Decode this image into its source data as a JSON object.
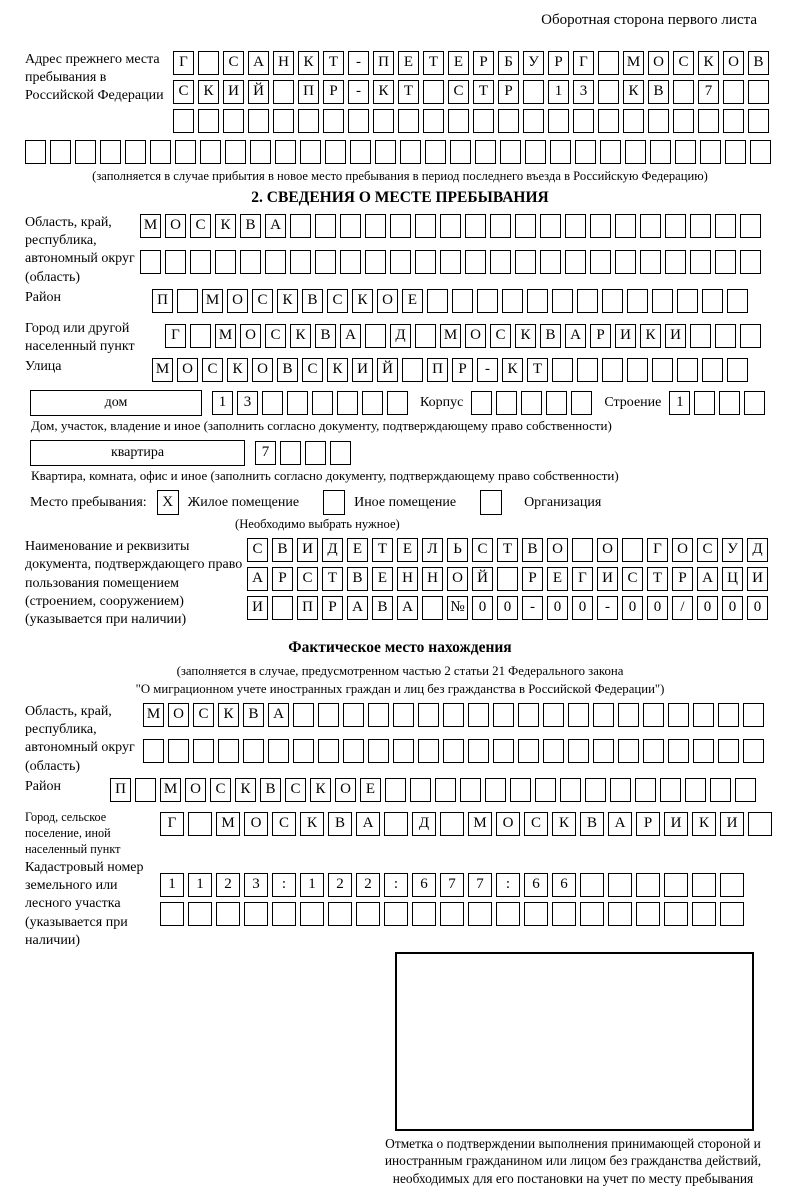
{
  "page": {
    "note": "Оборотная сторона первого листа"
  },
  "prev_address": {
    "label": "Адрес прежнего места пребывания в Российской Федерации",
    "rows": [
      {
        "text": "Г САНКТ-ПЕТЕРБУРГ МОСКОВ",
        "len": 24
      },
      {
        "text": "СКИЙ ПР-КТ СТР 13 КВ 7",
        "len": 24
      },
      {
        "text": "",
        "len": 24
      },
      {
        "text": "",
        "len": 30
      }
    ],
    "caption": "(заполняется в случае прибытия в новое место пребывания в период последнего въезда в Российскую Федерацию)"
  },
  "section2": {
    "title": "2. СВЕДЕНИЯ О МЕСТЕ ПРЕБЫВАНИЯ",
    "region": {
      "label": "Область, край, республика, автономный округ (область)",
      "rows": [
        {
          "text": "МОСКВА",
          "len": 25
        },
        {
          "text": "",
          "len": 25
        }
      ]
    },
    "district": {
      "label": "Район",
      "cells": {
        "text": "П МОСКВСКОЕ",
        "len": 24
      }
    },
    "city": {
      "label": "Город или другой населенный пункт",
      "cells": {
        "text": "Г МОСКВА Д МОСКВАРИКИ",
        "len": 24
      }
    },
    "street": {
      "label": "Улица",
      "cells": {
        "text": "МОСКОВСКИЙ ПР-КТ",
        "len": 24
      }
    },
    "house": {
      "box_label": "дом",
      "number": {
        "text": "13",
        "len": 8
      },
      "korpus_label": "Корпус",
      "korpus": {
        "text": "",
        "len": 5
      },
      "stroenie_label": "Строение",
      "stroenie": {
        "text": "1",
        "len": 4
      },
      "caption": "Дом, участок, владение и иное (заполнить согласно документу, подтверждающему право собственности)"
    },
    "apartment": {
      "box_label": "квартира",
      "number": {
        "text": "7",
        "len": 4
      },
      "caption": "Квартира, комната, офис и иное (заполнить согласно документу, подтверждающему право собственности)"
    },
    "premises": {
      "label": "Место пребывания:",
      "options": [
        {
          "label": "Жилое помещение",
          "checked": "X"
        },
        {
          "label": "Иное помещение",
          "checked": ""
        },
        {
          "label": "Организация",
          "checked": ""
        }
      ],
      "note": "(Необходимо выбрать нужное)"
    },
    "document": {
      "label": "Наименование и реквизиты документа, подтверждающего право пользования помещением (строением, сооружением) (указывается при наличии)",
      "rows": [
        {
          "text": "СВИДЕТЕЛЬСТВО О ГОСУД",
          "len": 21
        },
        {
          "text": "АРСТВЕННОЙ РЕГИСТРАЦИ",
          "len": 21
        },
        {
          "text": "И ПРАВА №00-00-00/000",
          "len": 21
        }
      ]
    }
  },
  "actual_location": {
    "title": "Фактическое место нахождения",
    "captions": [
      "(заполняется в случае, предусмотренном частью 2 статьи 21 Федерального закона",
      "\"О миграционном учете иностранных граждан и лиц без гражданства в Российской Федерации\")"
    ],
    "region": {
      "label": "Область, край, республика, автономный округ (область)",
      "rows": [
        {
          "text": "МОСКВА",
          "len": 25
        },
        {
          "text": "",
          "len": 25
        }
      ]
    },
    "district": {
      "label": "Район",
      "cells": {
        "text": "П МОСКВСКОЕ",
        "len": 26
      }
    },
    "city": {
      "label": "Город, сельское поселение, иной населенный пункт",
      "cells": {
        "text": "Г МОСКВА Д МОСКВАРИКИ",
        "len": 22,
        "size": "wide"
      }
    },
    "cadastre": {
      "label": "Кадастровый номер земельного или лесного участка (указывается при наличии)",
      "rows": [
        {
          "text": "1123:122:677:66",
          "len": 21,
          "size": "wide"
        },
        {
          "text": "",
          "len": 21,
          "size": "wide"
        }
      ]
    },
    "confirmation_caption": "Отметка о подтверждении выполнения принимающей стороной и иностранным гражданином или лицом без гражданства действий, необходимых для его постановки на учет по месту пребывания"
  }
}
